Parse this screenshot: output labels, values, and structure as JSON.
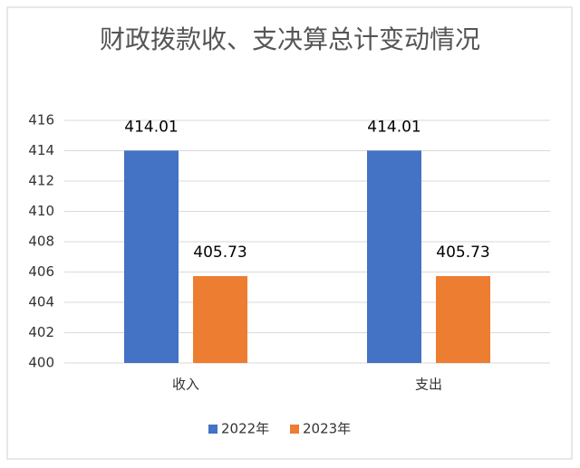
{
  "chart_data": {
    "type": "bar",
    "title": "财政拨款收、支决算总计变动情况",
    "categories": [
      "收入",
      "支出"
    ],
    "series": [
      {
        "name": "2022年",
        "color": "#4472c4",
        "values": [
          414.01,
          414.01
        ]
      },
      {
        "name": "2023年",
        "color": "#ed7d31",
        "values": [
          405.73,
          405.73
        ]
      }
    ],
    "ylim": [
      400,
      416
    ],
    "yticks": [
      400,
      402,
      404,
      406,
      408,
      410,
      412,
      414,
      416
    ],
    "grid": true,
    "legend": "bottom"
  }
}
